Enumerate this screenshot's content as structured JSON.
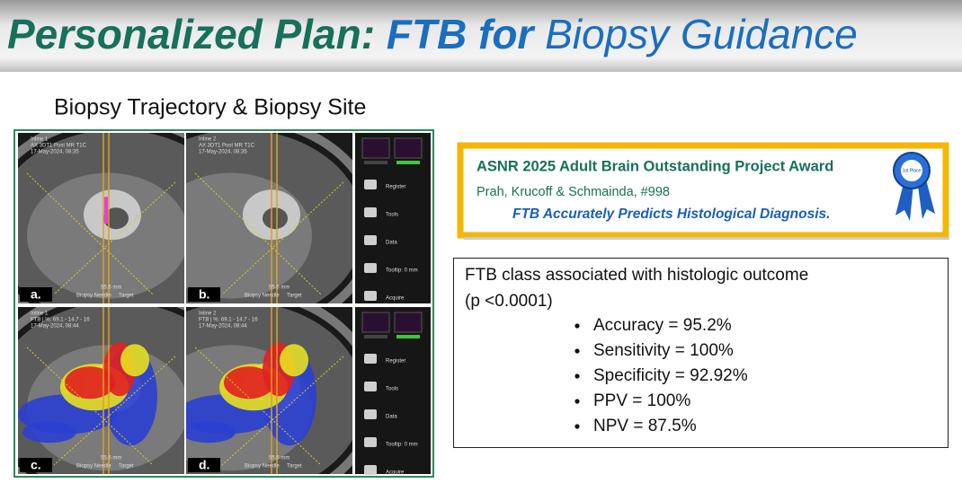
{
  "header": {
    "title_green": "Personalized Plan:",
    "title_bold": "FTB for",
    "title_rest": "Biopsy Guidance"
  },
  "figure": {
    "caption": "Biopsy Trajectory & Biopsy Site",
    "panels": [
      {
        "label": "a.",
        "viewport": "Inline 1",
        "series": "AX 3DT1 Post MR T1C",
        "date": "17-May-2024, 08:35"
      },
      {
        "label": "b.",
        "viewport": "Inline 2",
        "series": "AX 3DT1 Post MR T1C",
        "date": "17-May-2024, 08:35"
      },
      {
        "label": "c.",
        "viewport": "Inline 1",
        "series": "FTB | %: 69.1 - 14.7 - 16",
        "date": "17-May-2024, 08:44"
      },
      {
        "label": "d.",
        "viewport": "Inline 2",
        "series": "FTB | %: 69.1 - 14.7 - 16",
        "date": "17-May-2024, 08:44"
      }
    ],
    "needle_label": "Biopsy Needle",
    "target_label": "Target",
    "distance": "55.6 mm",
    "toolbar": [
      "Register",
      "Tools",
      "Data",
      "Tooltip: 0 mm",
      "Acquire"
    ]
  },
  "award": {
    "title": "ASNR 2025 Adult Brain Outstanding Project Award",
    "authors": "Prah, Krucoff & Schmainda, #998",
    "finding": "FTB Accurately Predicts Histological Diagnosis.",
    "ribbon": "1st Place"
  },
  "results": {
    "heading": "FTB class associated with histologic outcome",
    "p_value": "(p <0.0001)",
    "metrics": [
      "Accuracy = 95.2%",
      "Sensitivity = 100%",
      "Specificity = 92.92%",
      "PPV = 100%",
      "NPV = 87.5%"
    ]
  }
}
